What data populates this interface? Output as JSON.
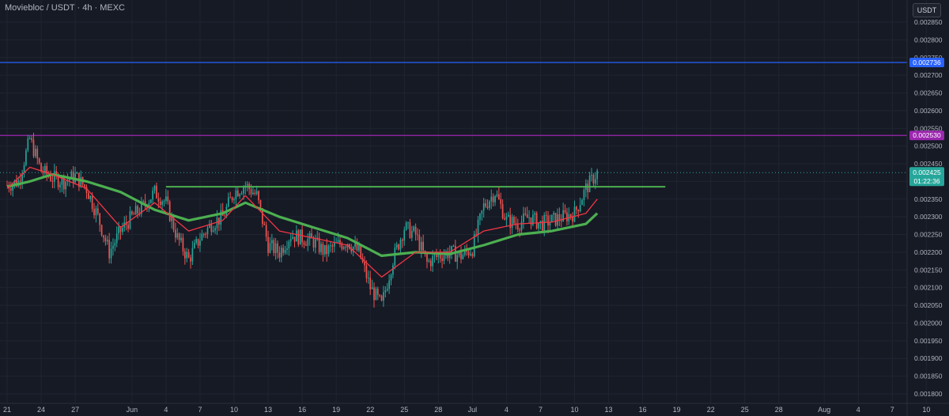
{
  "header": {
    "pair_label": "Moviebloc / USDT · 4h · MEXC",
    "currency_button": "USDT"
  },
  "colors": {
    "background": "#161a25",
    "grid": "#202431",
    "up_candle": "#26a69a",
    "down_candle": "#ef5350",
    "resistance_line": "#4caf50",
    "ma_slow": "#4caf50",
    "ma_fast": "#f23645",
    "blue_level": "#2962ff",
    "purple_level": "#9c27b0",
    "price_badge": "#26a69a"
  },
  "chart_data": {
    "type": "candlestick",
    "symbol": "Moviebloc / USDT",
    "timeframe": "4h",
    "exchange": "MEXC",
    "x_range": [
      "2023-05-21",
      "2023-08-10"
    ],
    "ylim": [
      0.00176,
      0.00289
    ],
    "y_ticks": [
      "0.002850",
      "0.002800",
      "0.002750",
      "0.002700",
      "0.002650",
      "0.002600",
      "0.002550",
      "0.002500",
      "0.002450",
      "0.002400",
      "0.002350",
      "0.002300",
      "0.002250",
      "0.002200",
      "0.002150",
      "0.002100",
      "0.002050",
      "0.002000",
      "0.001950",
      "0.001900",
      "0.001850",
      "0.001800"
    ],
    "x_ticks": [
      {
        "date": "2023-05-21",
        "label": "21"
      },
      {
        "date": "2023-05-24",
        "label": "24"
      },
      {
        "date": "2023-05-27",
        "label": "27"
      },
      {
        "date": "2023-06-01",
        "label": "Jun"
      },
      {
        "date": "2023-06-04",
        "label": "4"
      },
      {
        "date": "2023-06-07",
        "label": "7"
      },
      {
        "date": "2023-06-10",
        "label": "10"
      },
      {
        "date": "2023-06-13",
        "label": "13"
      },
      {
        "date": "2023-06-16",
        "label": "16"
      },
      {
        "date": "2023-06-19",
        "label": "19"
      },
      {
        "date": "2023-06-22",
        "label": "22"
      },
      {
        "date": "2023-06-25",
        "label": "25"
      },
      {
        "date": "2023-06-28",
        "label": "28"
      },
      {
        "date": "2023-07-01",
        "label": "Jul"
      },
      {
        "date": "2023-07-04",
        "label": "4"
      },
      {
        "date": "2023-07-07",
        "label": "7"
      },
      {
        "date": "2023-07-10",
        "label": "10"
      },
      {
        "date": "2023-07-13",
        "label": "13"
      },
      {
        "date": "2023-07-16",
        "label": "16"
      },
      {
        "date": "2023-07-19",
        "label": "19"
      },
      {
        "date": "2023-07-22",
        "label": "22"
      },
      {
        "date": "2023-07-25",
        "label": "25"
      },
      {
        "date": "2023-07-28",
        "label": "28"
      },
      {
        "date": "2023-08-01",
        "label": "Aug"
      },
      {
        "date": "2023-08-04",
        "label": "4"
      },
      {
        "date": "2023-08-07",
        "label": "7"
      },
      {
        "date": "2023-08-10",
        "label": "10"
      }
    ],
    "price_path": [
      {
        "date": "2023-05-21",
        "price": 0.00239
      },
      {
        "date": "2023-05-22",
        "price": 0.0024
      },
      {
        "date": "2023-05-23",
        "price": 0.00252
      },
      {
        "date": "2023-05-24",
        "price": 0.00243
      },
      {
        "date": "2023-05-25",
        "price": 0.00241
      },
      {
        "date": "2023-05-26",
        "price": 0.0024
      },
      {
        "date": "2023-05-27",
        "price": 0.002415
      },
      {
        "date": "2023-05-28",
        "price": 0.00238
      },
      {
        "date": "2023-05-29",
        "price": 0.0023
      },
      {
        "date": "2023-05-30",
        "price": 0.0022
      },
      {
        "date": "2023-05-31",
        "price": 0.00226
      },
      {
        "date": "2023-06-01",
        "price": 0.0023
      },
      {
        "date": "2023-06-02",
        "price": 0.00233
      },
      {
        "date": "2023-06-03",
        "price": 0.00237
      },
      {
        "date": "2023-06-04",
        "price": 0.00234
      },
      {
        "date": "2023-06-05",
        "price": 0.00224
      },
      {
        "date": "2023-06-06",
        "price": 0.00218
      },
      {
        "date": "2023-06-07",
        "price": 0.00224
      },
      {
        "date": "2023-06-08",
        "price": 0.00228
      },
      {
        "date": "2023-06-09",
        "price": 0.0023
      },
      {
        "date": "2023-06-10",
        "price": 0.00237
      },
      {
        "date": "2023-06-11",
        "price": 0.00239
      },
      {
        "date": "2023-06-12",
        "price": 0.00236
      },
      {
        "date": "2023-06-13",
        "price": 0.00222
      },
      {
        "date": "2023-06-14",
        "price": 0.0022
      },
      {
        "date": "2023-06-15",
        "price": 0.00225
      },
      {
        "date": "2023-06-16",
        "price": 0.00224
      },
      {
        "date": "2023-06-17",
        "price": 0.00223
      },
      {
        "date": "2023-06-18",
        "price": 0.0022
      },
      {
        "date": "2023-06-19",
        "price": 0.00222
      },
      {
        "date": "2023-06-20",
        "price": 0.00223
      },
      {
        "date": "2023-06-21",
        "price": 0.0022
      },
      {
        "date": "2023-06-22",
        "price": 0.0021
      },
      {
        "date": "2023-06-23",
        "price": 0.00205
      },
      {
        "date": "2023-06-24",
        "price": 0.00218
      },
      {
        "date": "2023-06-25",
        "price": 0.00227
      },
      {
        "date": "2023-06-26",
        "price": 0.00225
      },
      {
        "date": "2023-06-27",
        "price": 0.00217
      },
      {
        "date": "2023-06-28",
        "price": 0.00219
      },
      {
        "date": "2023-06-29",
        "price": 0.0022
      },
      {
        "date": "2023-06-30",
        "price": 0.00219
      },
      {
        "date": "2023-07-01",
        "price": 0.00221
      },
      {
        "date": "2023-07-02",
        "price": 0.00233
      },
      {
        "date": "2023-07-03",
        "price": 0.00237
      },
      {
        "date": "2023-07-04",
        "price": 0.00229
      },
      {
        "date": "2023-07-05",
        "price": 0.00228
      },
      {
        "date": "2023-07-06",
        "price": 0.0023
      },
      {
        "date": "2023-07-07",
        "price": 0.00228
      },
      {
        "date": "2023-07-08",
        "price": 0.00229
      },
      {
        "date": "2023-07-09",
        "price": 0.0023
      },
      {
        "date": "2023-07-10",
        "price": 0.00231
      },
      {
        "date": "2023-07-11",
        "price": 0.00238
      },
      {
        "date": "2023-07-12",
        "price": 0.002425
      }
    ],
    "ma_slow_path": [
      {
        "date": "2023-05-21",
        "price": 0.002385
      },
      {
        "date": "2023-05-23",
        "price": 0.0024
      },
      {
        "date": "2023-05-25",
        "price": 0.00242
      },
      {
        "date": "2023-05-28",
        "price": 0.0024
      },
      {
        "date": "2023-05-31",
        "price": 0.00237
      },
      {
        "date": "2023-06-03",
        "price": 0.00232
      },
      {
        "date": "2023-06-06",
        "price": 0.00229
      },
      {
        "date": "2023-06-09",
        "price": 0.00231
      },
      {
        "date": "2023-06-11",
        "price": 0.00234
      },
      {
        "date": "2023-06-14",
        "price": 0.0023
      },
      {
        "date": "2023-06-17",
        "price": 0.00227
      },
      {
        "date": "2023-06-20",
        "price": 0.00224
      },
      {
        "date": "2023-06-23",
        "price": 0.00219
      },
      {
        "date": "2023-06-26",
        "price": 0.0022
      },
      {
        "date": "2023-06-29",
        "price": 0.002195
      },
      {
        "date": "2023-07-02",
        "price": 0.00222
      },
      {
        "date": "2023-07-05",
        "price": 0.00225
      },
      {
        "date": "2023-07-08",
        "price": 0.00226
      },
      {
        "date": "2023-07-11",
        "price": 0.00228
      },
      {
        "date": "2023-07-12",
        "price": 0.00231
      }
    ],
    "ma_fast_path": [
      {
        "date": "2023-05-21",
        "price": 0.00238
      },
      {
        "date": "2023-05-23",
        "price": 0.00244
      },
      {
        "date": "2023-05-25",
        "price": 0.00242
      },
      {
        "date": "2023-05-28",
        "price": 0.00238
      },
      {
        "date": "2023-05-31",
        "price": 0.00227
      },
      {
        "date": "2023-06-03",
        "price": 0.00234
      },
      {
        "date": "2023-06-06",
        "price": 0.00226
      },
      {
        "date": "2023-06-09",
        "price": 0.00229
      },
      {
        "date": "2023-06-11",
        "price": 0.00236
      },
      {
        "date": "2023-06-14",
        "price": 0.00226
      },
      {
        "date": "2023-06-17",
        "price": 0.00224
      },
      {
        "date": "2023-06-20",
        "price": 0.00222
      },
      {
        "date": "2023-06-23",
        "price": 0.00213
      },
      {
        "date": "2023-06-26",
        "price": 0.0022
      },
      {
        "date": "2023-06-29",
        "price": 0.0022
      },
      {
        "date": "2023-07-02",
        "price": 0.00226
      },
      {
        "date": "2023-07-05",
        "price": 0.00228
      },
      {
        "date": "2023-07-08",
        "price": 0.002285
      },
      {
        "date": "2023-07-11",
        "price": 0.00231
      },
      {
        "date": "2023-07-12",
        "price": 0.00235
      }
    ],
    "resistance_line": {
      "start": "2023-06-04",
      "end": "2023-07-18",
      "price": 0.002385
    },
    "levels": [
      {
        "price": 0.002736,
        "label": "0.002736",
        "color": "#2962ff"
      },
      {
        "price": 0.00253,
        "label": "0.002530",
        "color": "#9c27b0"
      }
    ],
    "current_price": {
      "price": 0.002425,
      "label": "0.002425",
      "countdown": "01:22:36"
    },
    "grid": true
  }
}
